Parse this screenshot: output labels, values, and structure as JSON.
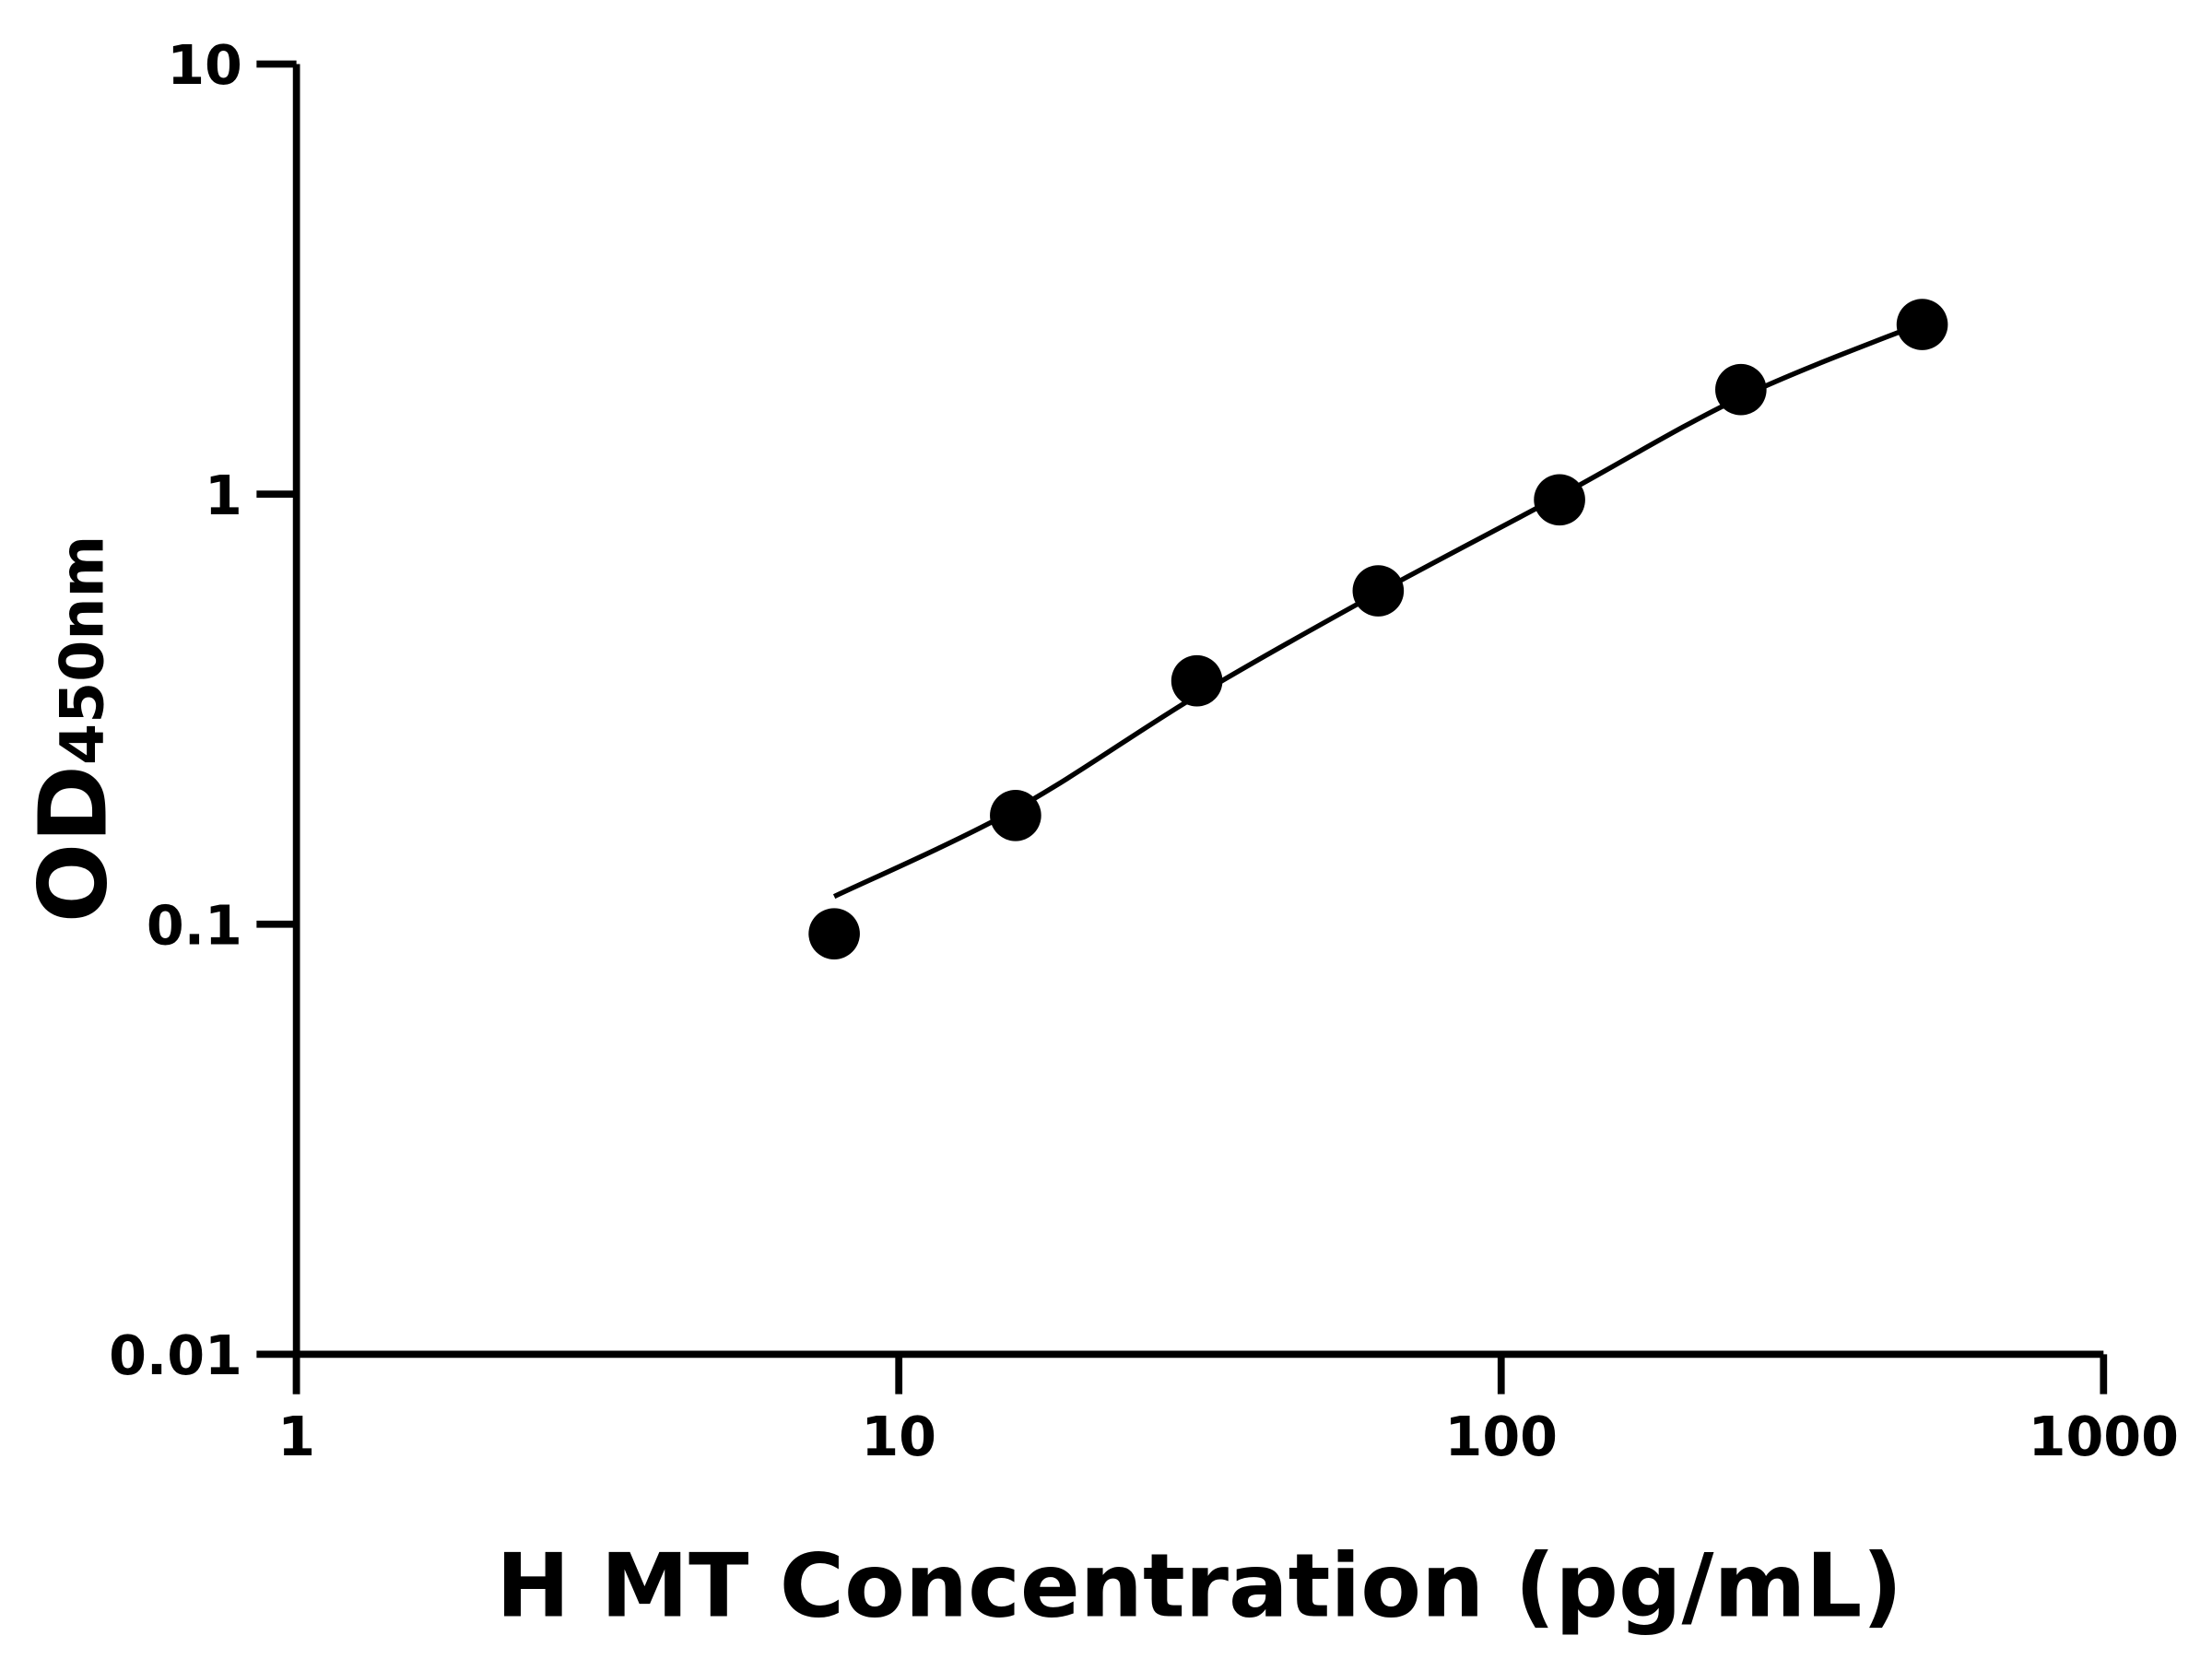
{
  "chart_data": {
    "type": "scatter",
    "title": "",
    "xlabel": "H MT Concentration (pg/mL)",
    "ylabel": {
      "main": "OD",
      "subscript": "450nm"
    },
    "xscale": "log",
    "yscale": "log",
    "xlim": [
      1,
      1000
    ],
    "ylim": [
      0.01,
      10
    ],
    "xticks": [
      "1",
      "10",
      "100",
      "1000"
    ],
    "yticks": [
      "0.01",
      "0.1",
      "1",
      "10"
    ],
    "grid": false,
    "legend": "none",
    "series": [
      {
        "x": [
          7.8125,
          15.625,
          31.25,
          62.5,
          125,
          250,
          500
        ],
        "y": [
          0.095,
          0.179,
          0.368,
          0.596,
          0.97,
          1.75,
          2.48
        ],
        "marker": "circle",
        "color": "#000000"
      }
    ],
    "fit_curve": {
      "x": [
        7.8125,
        15.625,
        31.25,
        62.5,
        125,
        250,
        500
      ],
      "y": [
        0.116,
        0.185,
        0.34,
        0.59,
        0.99,
        1.68,
        2.5
      ],
      "color": "#000000"
    }
  }
}
